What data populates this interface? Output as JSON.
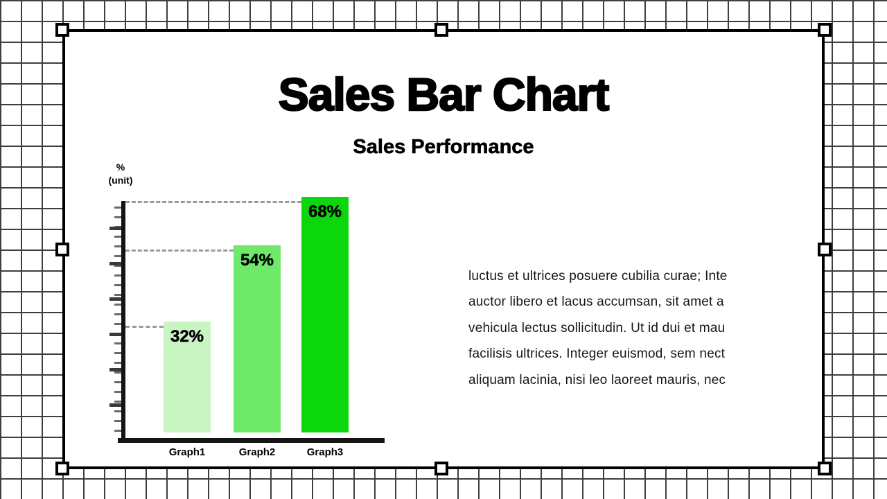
{
  "slide": {
    "title": "Sales Bar Chart",
    "subtitle": "Sales Performance",
    "body_lines": [
      "luctus et ultrices posuere cubilia curae; Inte",
      "auctor libero et lacus accumsan, sit amet a",
      "vehicula lectus sollicitudin. Ut id dui et mau",
      "facilisis ultrices. Integer euismod, sem nect",
      "aliquam lacinia, nisi leo laoreet mauris, nec"
    ]
  },
  "chart_data": {
    "type": "bar",
    "title": "Sales Performance",
    "categories": [
      "Graph1",
      "Graph2",
      "Graph3"
    ],
    "values": [
      32,
      54,
      68
    ],
    "value_labels": [
      "32%",
      "54%",
      "68%"
    ],
    "ylabel": "% (unit)",
    "y_unit_line1": "%",
    "y_unit_line2": "(unit)",
    "ylim": [
      0,
      100
    ],
    "bar_colors": [
      "#c9f5c2",
      "#6ee96a",
      "#0cd60c"
    ],
    "guide_line_style": "dashed",
    "legend": "none"
  }
}
